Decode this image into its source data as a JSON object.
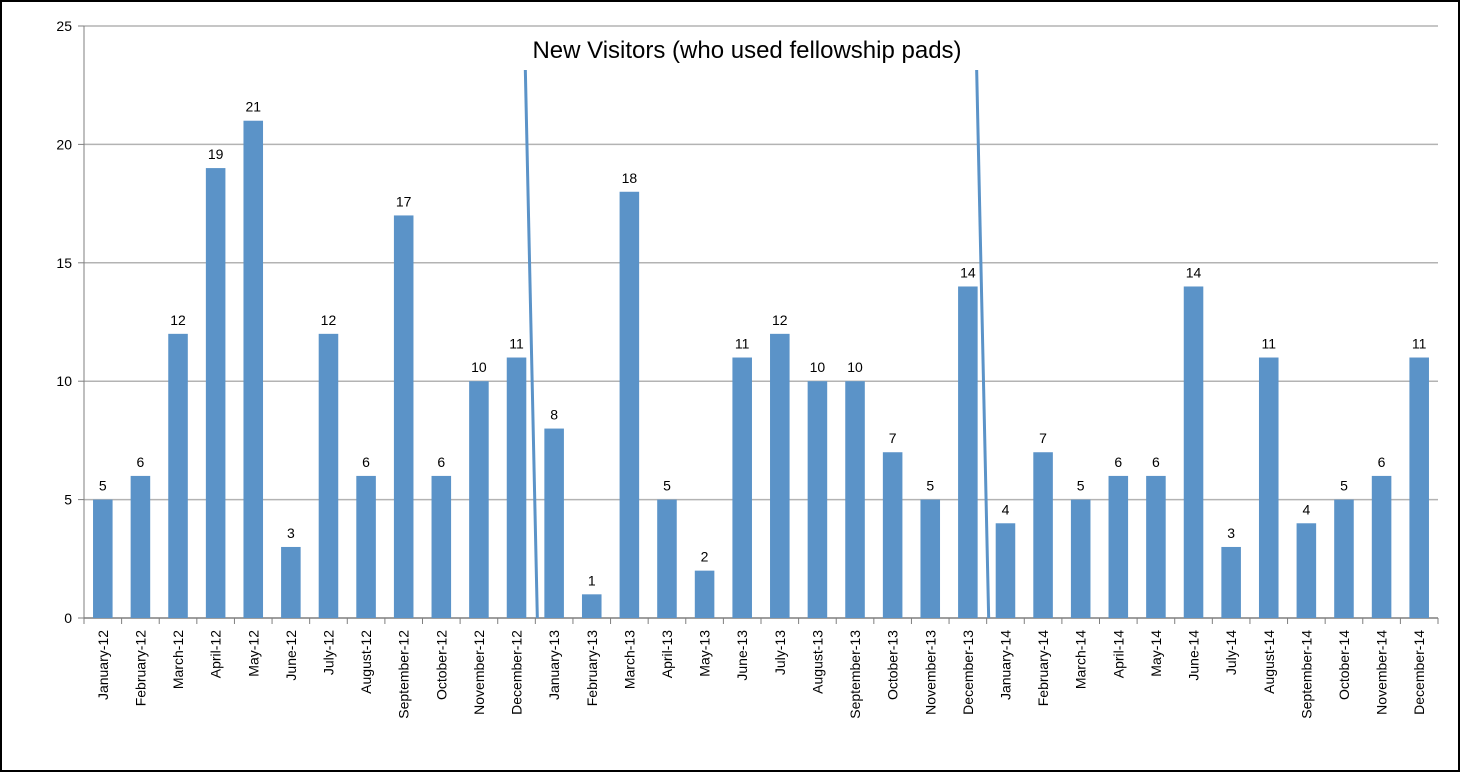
{
  "chart_data": {
    "type": "bar",
    "title": "New Visitors (who used fellowship pads)",
    "xlabel": "",
    "ylabel": "",
    "ylim": [
      0,
      25
    ],
    "yticks": [
      0,
      5,
      10,
      15,
      20,
      25
    ],
    "grid": true,
    "legend": "none",
    "categories": [
      "January-12",
      "February-12",
      "March-12",
      "April-12",
      "May-12",
      "June-12",
      "July-12",
      "August-12",
      "September-12",
      "October-12",
      "November-12",
      "December-12",
      "January-13",
      "February-13",
      "March-13",
      "April-13",
      "May-13",
      "June-13",
      "July-13",
      "August-13",
      "September-13",
      "October-13",
      "November-13",
      "December-13",
      "January-14",
      "February-14",
      "March-14",
      "April-14",
      "May-14",
      "June-14",
      "July-14",
      "August-14",
      "September-14",
      "October-14",
      "November-14",
      "December-14"
    ],
    "values": [
      5,
      6,
      12,
      19,
      21,
      3,
      12,
      6,
      17,
      6,
      10,
      11,
      8,
      1,
      18,
      5,
      2,
      11,
      12,
      10,
      10,
      7,
      5,
      14,
      4,
      7,
      5,
      6,
      6,
      14,
      3,
      11,
      4,
      5,
      6,
      11
    ],
    "colors": {
      "bar": "#5b93c8",
      "grid": "#b3b3b3",
      "divider": "#5b93c8"
    }
  }
}
